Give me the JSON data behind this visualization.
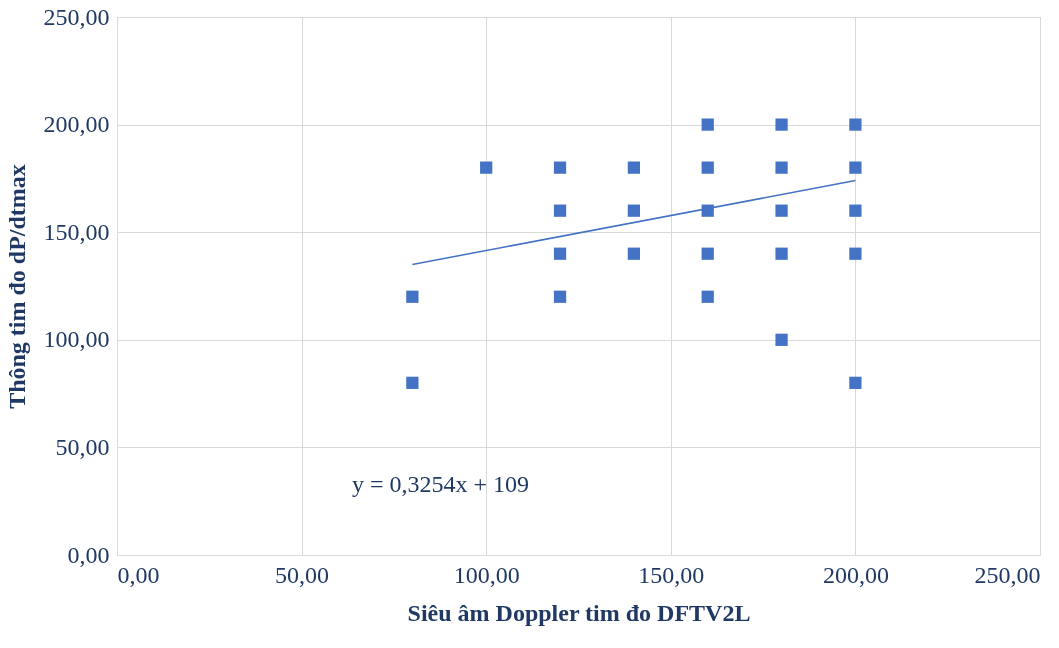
{
  "chart_data": {
    "type": "scatter",
    "xlabel": "Siêu âm Doppler tim đo DFTV2L",
    "ylabel": "Thông tim đo dP/dtmax",
    "x": [
      80,
      80,
      100,
      120,
      120,
      120,
      120,
      140,
      140,
      140,
      160,
      160,
      160,
      160,
      160,
      180,
      180,
      180,
      180,
      180,
      200,
      200,
      200,
      200,
      200
    ],
    "series": [
      {
        "color": "#4472c4",
        "marker": "square",
        "values": [
          120,
          80,
          180,
          180,
          160,
          140,
          120,
          180,
          160,
          140,
          200,
          180,
          160,
          140,
          120,
          200,
          180,
          160,
          140,
          100,
          200,
          180,
          160,
          140,
          80
        ]
      },
      {
        "type": "line",
        "color": "#4472c4",
        "x": [
          80,
          200
        ],
        "values": [
          135,
          174
        ]
      }
    ],
    "xlim": [
      0,
      250
    ],
    "ylim": [
      0,
      250
    ],
    "xticks": [
      {
        "value": 0,
        "label": "0,00"
      },
      {
        "value": 50,
        "label": "50,00"
      },
      {
        "value": 100,
        "label": "100,00"
      },
      {
        "value": 150,
        "label": "150,00"
      },
      {
        "value": 200,
        "label": "200,00"
      },
      {
        "value": 250,
        "label": "250,00"
      }
    ],
    "yticks": [
      {
        "value": 0,
        "label": "0,00"
      },
      {
        "value": 50,
        "label": "50,00"
      },
      {
        "value": 100,
        "label": "100,00"
      },
      {
        "value": 150,
        "label": "150,00"
      },
      {
        "value": 200,
        "label": "200,00"
      },
      {
        "value": 250,
        "label": "250,00"
      }
    ],
    "grid": true,
    "annotations": [
      "y = 0,3254x + 109"
    ]
  }
}
